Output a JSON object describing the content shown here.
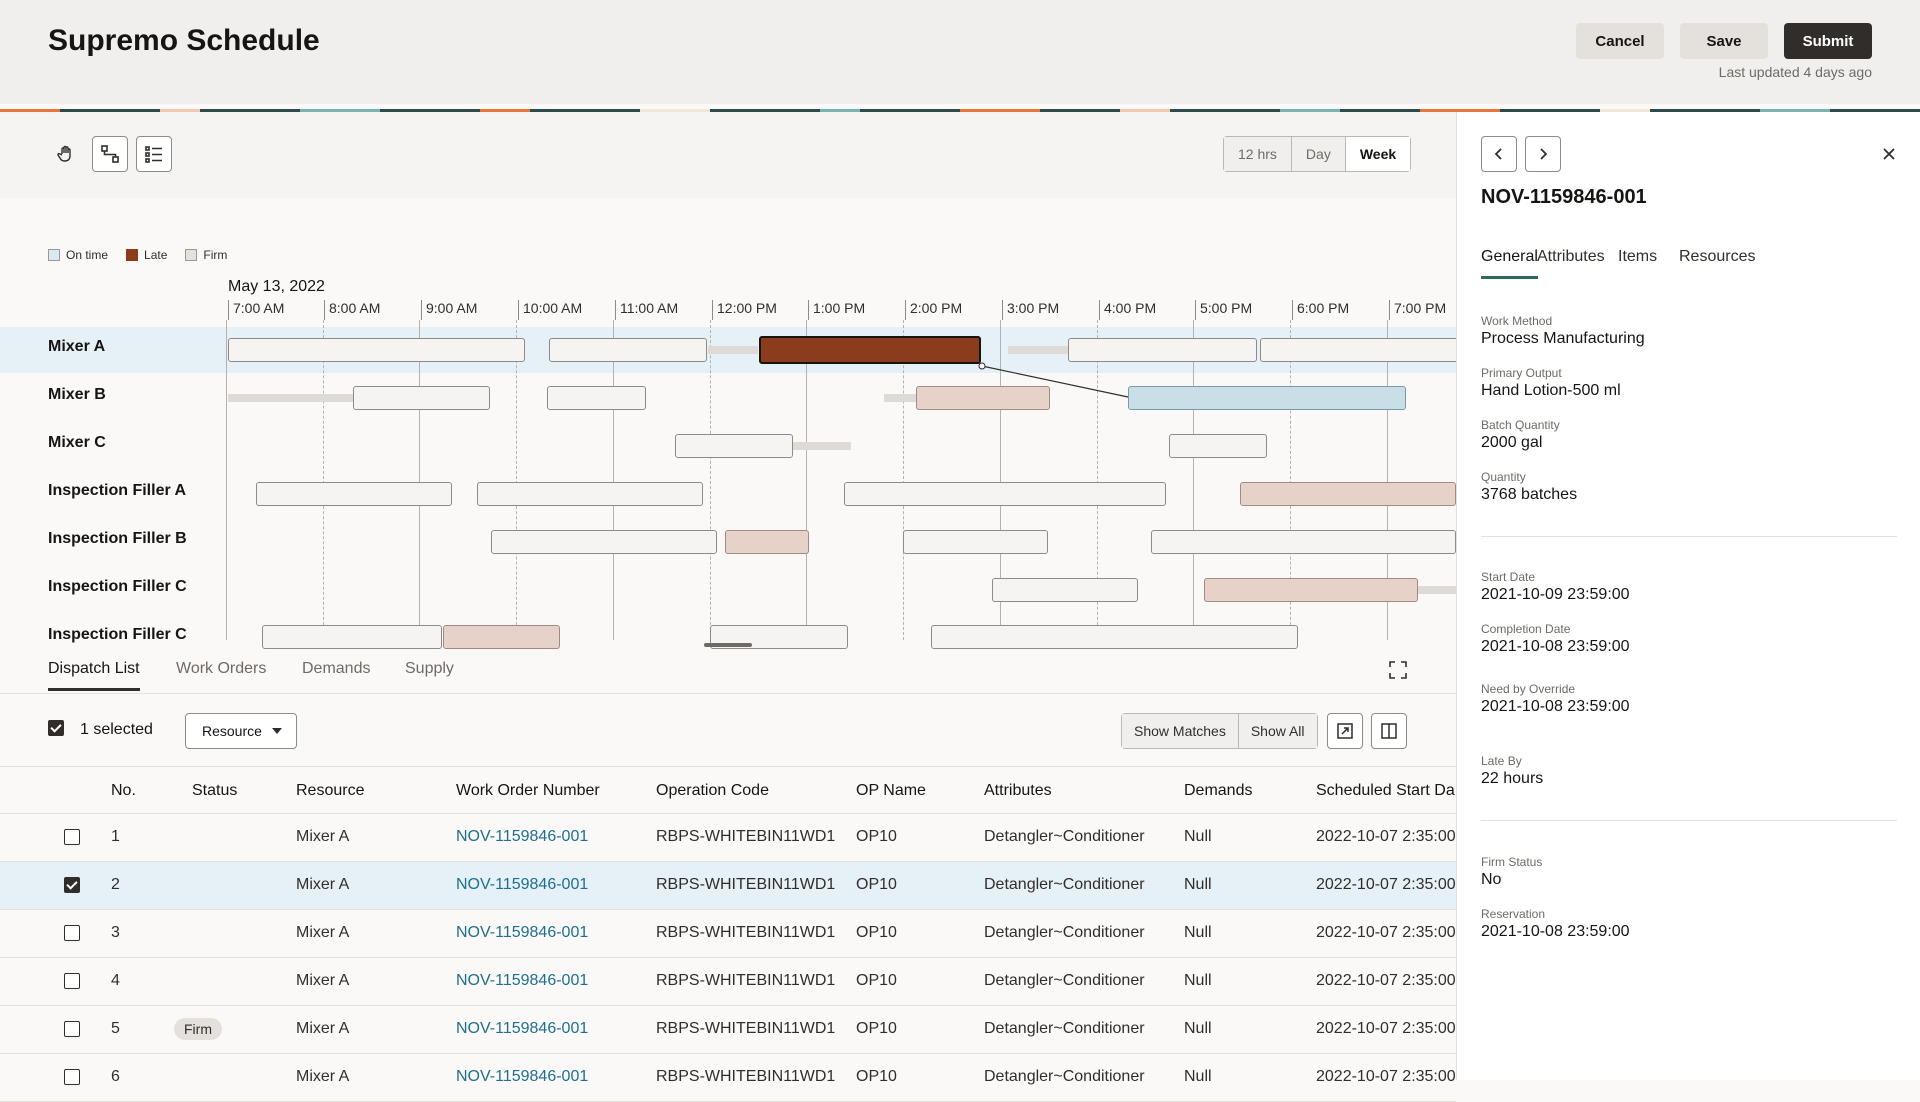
{
  "header": {
    "title": "Supremo Schedule",
    "cancel_label": "Cancel",
    "save_label": "Save",
    "submit_label": "Submit",
    "last_updated": "Last updated 4 days ago"
  },
  "toolbar": {
    "time_scales": [
      "12 hrs",
      "Day",
      "Week"
    ],
    "selected_scale": "Week"
  },
  "legend": [
    {
      "label": "On time",
      "color": "#dce9f0"
    },
    {
      "label": "Late",
      "color": "#8a3c1d"
    },
    {
      "label": "Firm",
      "color": "#e4e1dd"
    }
  ],
  "gantt": {
    "date": "May 13, 2022",
    "ticks": [
      "7:00 AM",
      "8:00 AM",
      "9:00 AM",
      "10:00 AM",
      "11:00 AM",
      "12:00 PM",
      "1:00 PM",
      "2:00 PM",
      "3:00 PM",
      "4:00 PM",
      "5:00 PM",
      "6:00 PM",
      "7:00 PM"
    ],
    "resources": [
      "Mixer A",
      "Mixer B",
      "Mixer C",
      "Inspection Filler A",
      "Inspection Filler B",
      "Inspection Filler C",
      "Inspection Filler C"
    ]
  },
  "tabs": [
    "Dispatch List",
    "Work Orders",
    "Demands",
    "Supply"
  ],
  "dispatch": {
    "selected_count": "1 selected",
    "group_by": "Resource",
    "show_matches": "Show Matches",
    "show_all": "Show All",
    "columns": [
      "No.",
      "Status",
      "Resource",
      "Work Order Number",
      "Operation Code",
      "OP Name",
      "Attributes",
      "Demands",
      "Scheduled Start Da"
    ],
    "rows": [
      {
        "no": "1",
        "status": "",
        "resource": "Mixer A",
        "wo": "NOV-1159846-001",
        "op_code": "RBPS-WHITEBIN11WD1",
        "op_name": "OP10",
        "attributes": "Detangler~Conditioner",
        "demands": "Null",
        "start": "2022-10-07 2:35:00",
        "checked": false
      },
      {
        "no": "2",
        "status": "",
        "resource": "Mixer A",
        "wo": "NOV-1159846-001",
        "op_code": "RBPS-WHITEBIN11WD1",
        "op_name": "OP10",
        "attributes": "Detangler~Conditioner",
        "demands": "Null",
        "start": "2022-10-07 2:35:00",
        "checked": true
      },
      {
        "no": "3",
        "status": "",
        "resource": "Mixer A",
        "wo": "NOV-1159846-001",
        "op_code": "RBPS-WHITEBIN11WD1",
        "op_name": "OP10",
        "attributes": "Detangler~Conditioner",
        "demands": "Null",
        "start": "2022-10-07 2:35:00",
        "checked": false
      },
      {
        "no": "4",
        "status": "",
        "resource": "Mixer A",
        "wo": "NOV-1159846-001",
        "op_code": "RBPS-WHITEBIN11WD1",
        "op_name": "OP10",
        "attributes": "Detangler~Conditioner",
        "demands": "Null",
        "start": "2022-10-07 2:35:00",
        "checked": false
      },
      {
        "no": "5",
        "status": "Firm",
        "resource": "Mixer A",
        "wo": "NOV-1159846-001",
        "op_code": "RBPS-WHITEBIN11WD1",
        "op_name": "OP10",
        "attributes": "Detangler~Conditioner",
        "demands": "Null",
        "start": "2022-10-07 2:35:00",
        "checked": false
      },
      {
        "no": "6",
        "status": "",
        "resource": "Mixer A",
        "wo": "NOV-1159846-001",
        "op_code": "RBPS-WHITEBIN11WD1",
        "op_name": "OP10",
        "attributes": "Detangler~Conditioner",
        "demands": "Null",
        "start": "2022-10-07 2:35:00",
        "checked": false
      }
    ]
  },
  "side": {
    "title": "NOV-1159846-001",
    "tabs": [
      "General",
      "Attributes",
      "Items",
      "Resources"
    ],
    "fields": [
      {
        "label": "Work Method",
        "value": "Process Manufacturing"
      },
      {
        "label": "Primary Output",
        "value": "Hand Lotion-500 ml"
      },
      {
        "label": "Batch Quantity",
        "value": "2000 gal"
      },
      {
        "label": "Quantity",
        "value": "3768 batches"
      },
      {
        "label": "Start Date",
        "value": "2021-10-09 23:59:00"
      },
      {
        "label": "Completion Date",
        "value": "2021-10-08 23:59:00"
      },
      {
        "label": "Need by Override",
        "value": "2021-10-08 23:59:00"
      },
      {
        "label": "Late By",
        "value": "22 hours"
      },
      {
        "label": "Firm Status",
        "value": "No"
      },
      {
        "label": "Reservation",
        "value": "2021-10-08 23:59:00"
      }
    ]
  }
}
